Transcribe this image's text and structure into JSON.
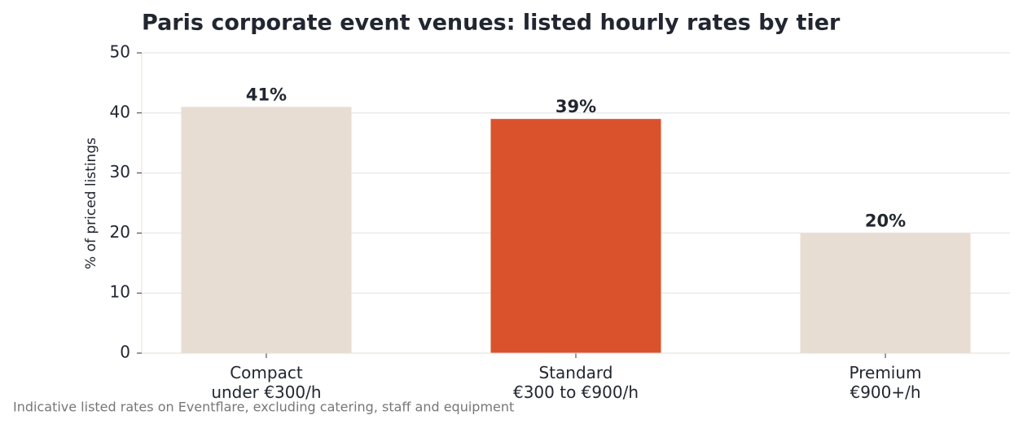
{
  "chart_data": {
    "type": "bar",
    "title": "Paris corporate event venues: listed hourly rates by tier",
    "y_label": "% of priced listings",
    "note": "Indicative listed rates on Eventflare, excluding catering, staff and equipment",
    "categories": [
      "Compact\nunder €300/h",
      "Standard\n€300 to €900/h",
      "Premium\n€900+/h"
    ],
    "values": [
      41,
      39,
      20
    ],
    "value_labels": [
      "41%",
      "39%",
      "20%"
    ],
    "colors": [
      "#e7ddd3",
      "#d9522c",
      "#e7ddd3"
    ],
    "ylim": [
      0,
      50
    ],
    "yticks": [
      0,
      10,
      20,
      30,
      40,
      50
    ],
    "grid": true
  }
}
